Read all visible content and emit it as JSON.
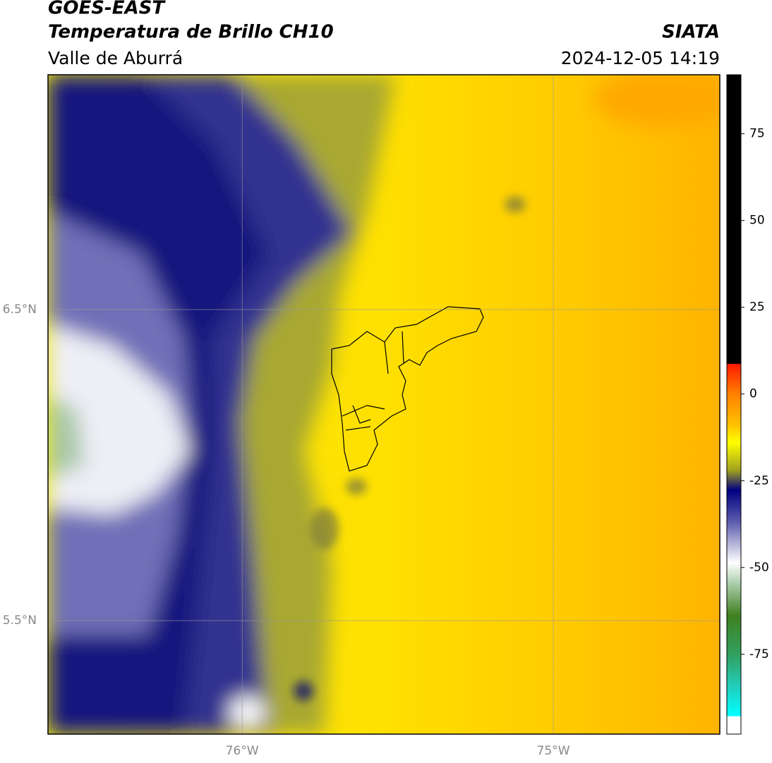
{
  "header": {
    "source": "GOES-EAST",
    "product": "Temperatura de Brillo CH10",
    "region": "Valle de Aburrá",
    "agency": "SIATA",
    "timestamp": "2024-12-05 14:19"
  },
  "map": {
    "xlim": [
      -76.624,
      -74.465
    ],
    "ylim": [
      5.135,
      7.255
    ],
    "xticks": [
      {
        "value": -76,
        "label": "76°W"
      },
      {
        "value": -75,
        "label": "75°W"
      }
    ],
    "yticks": [
      {
        "value": 6.5,
        "label": "6.5°N"
      },
      {
        "value": 5.5,
        "label": "5.5°N"
      }
    ],
    "grid": true
  },
  "colorbar": {
    "lim": [
      -98,
      92
    ],
    "ticks": [
      75,
      50,
      25,
      0,
      -25,
      -50,
      -75
    ]
  }
}
